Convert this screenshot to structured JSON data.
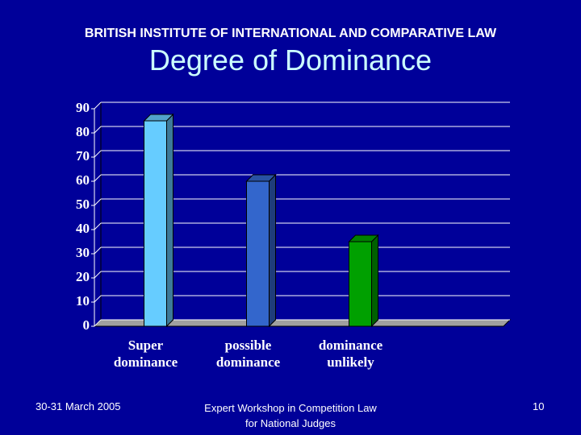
{
  "header": "BRITISH INSTITUTE OF INTERNATIONAL AND COMPARATIVE LAW",
  "chart_data": {
    "type": "bar",
    "title": "Degree of Dominance",
    "categories": [
      "Super dominance",
      "possible dominance",
      "dominance unlikely"
    ],
    "values": [
      85,
      60,
      35
    ],
    "colors": [
      "#66ccff",
      "#3366cc",
      "#00a000"
    ],
    "ylim": [
      0,
      90
    ],
    "yticks": [
      0,
      10,
      20,
      30,
      40,
      50,
      60,
      70,
      80,
      90
    ],
    "grid": true
  },
  "footer": {
    "date": "30-31 March 2005",
    "event": "Expert Workshop in Competition Law for National Judges",
    "page": "10"
  }
}
